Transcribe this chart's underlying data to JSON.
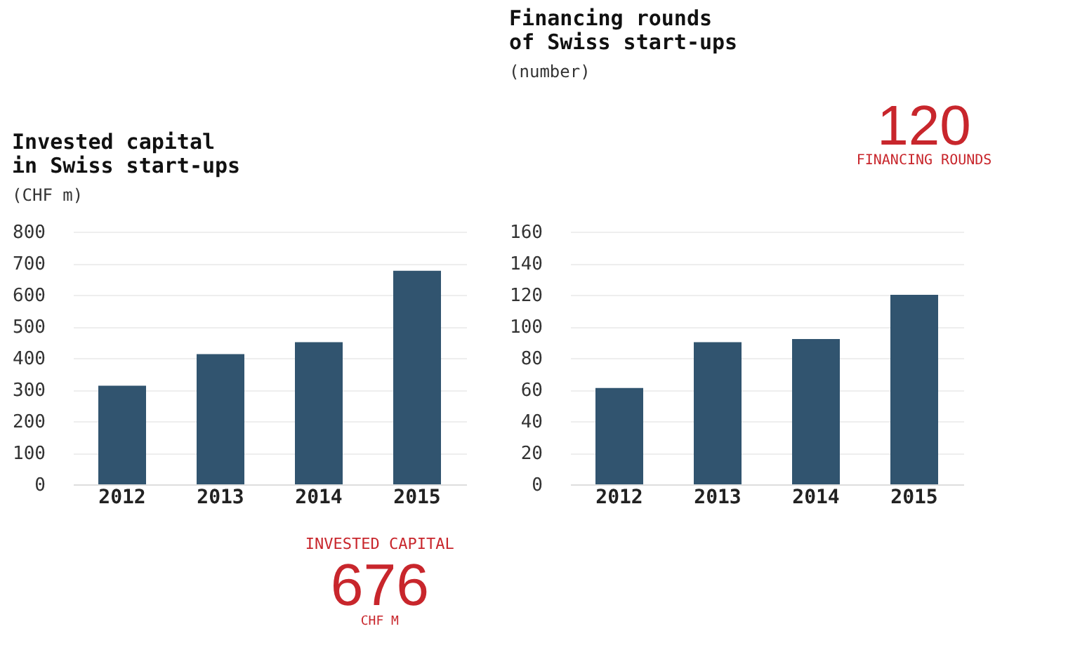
{
  "chart_data": [
    {
      "type": "bar",
      "title": "Invested capital\nin Swiss start-ups",
      "subtitle": "(CHF m)",
      "categories": [
        "2012",
        "2013",
        "2014",
        "2015"
      ],
      "values": [
        312,
        412,
        450,
        676
      ],
      "color": "#31546f",
      "ylim": [
        0,
        800
      ],
      "yticks": [
        0,
        100,
        200,
        300,
        400,
        500,
        600,
        700,
        800
      ],
      "grid": "y",
      "annotations": [
        "INVESTED CAPITAL",
        "676",
        "CHF M"
      ]
    },
    {
      "type": "bar",
      "title": "Financing rounds\nof Swiss start-ups",
      "subtitle": "(number)",
      "categories": [
        "2012",
        "2013",
        "2014",
        "2015"
      ],
      "values": [
        61,
        90,
        92,
        120
      ],
      "color": "#31546f",
      "ylim": [
        0,
        160
      ],
      "yticks": [
        0,
        20,
        40,
        60,
        80,
        100,
        120,
        140,
        160
      ],
      "grid": "y",
      "annotations": [
        "120",
        "FINANCING ROUNDS"
      ]
    }
  ]
}
